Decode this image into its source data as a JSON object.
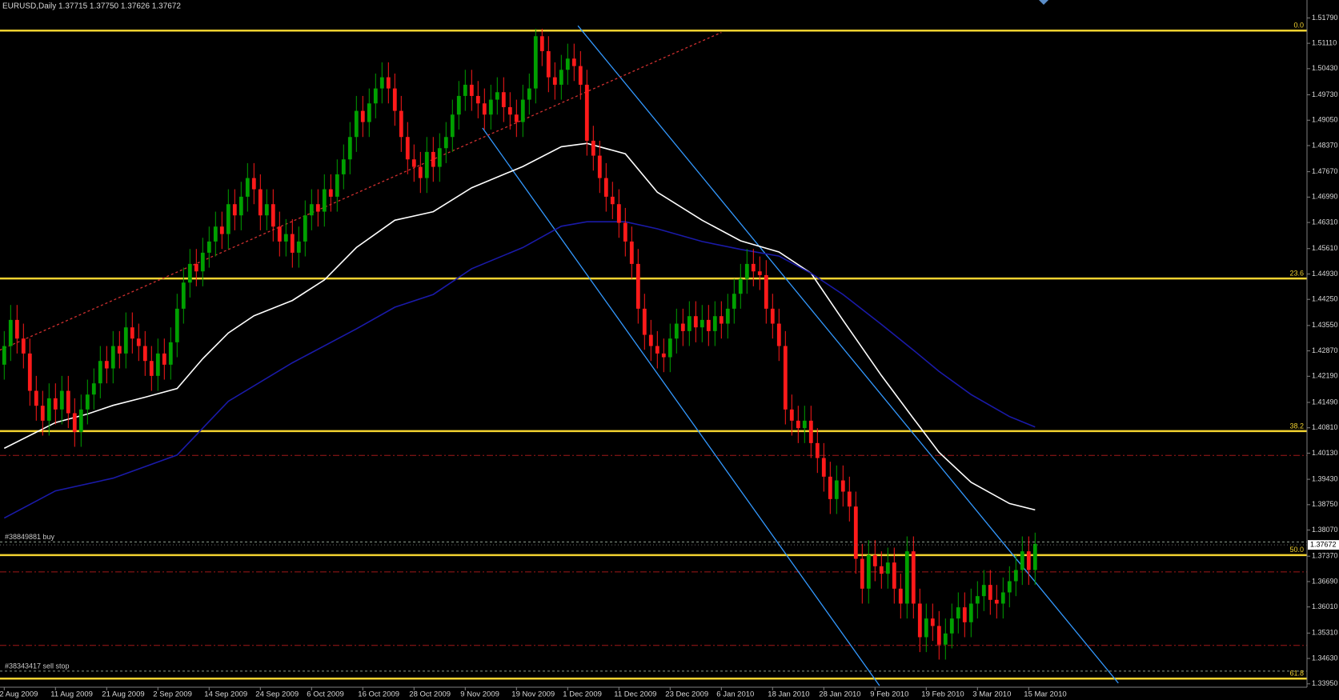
{
  "chart_data": {
    "type": "candlestick",
    "header": "EURUSD,Daily  1.37715 1.37750 1.37626 1.37672",
    "categories": [
      "2 Aug 2009",
      null,
      null,
      null,
      null,
      null,
      null,
      null,
      "11 Aug 2009",
      null,
      null,
      null,
      null,
      null,
      null,
      null,
      "21 Aug 2009",
      null,
      null,
      null,
      null,
      null,
      null,
      null,
      "2 Sep 2009",
      null,
      null,
      null,
      null,
      null,
      null,
      null,
      "14 Sep 2009",
      null,
      null,
      null,
      null,
      null,
      null,
      null,
      "24 Sep 2009",
      null,
      null,
      null,
      null,
      null,
      null,
      null,
      "6 Oct 2009",
      null,
      null,
      null,
      null,
      null,
      null,
      null,
      "16 Oct 2009",
      null,
      null,
      null,
      null,
      null,
      null,
      null,
      "28 Oct 2009",
      null,
      null,
      null,
      null,
      null,
      null,
      null,
      "9 Nov 2009",
      null,
      null,
      null,
      null,
      null,
      null,
      null,
      "19 Nov 2009",
      null,
      null,
      null,
      null,
      null,
      null,
      null,
      "1 Dec 2009",
      null,
      null,
      null,
      null,
      null,
      null,
      null,
      "11 Dec 2009",
      null,
      null,
      null,
      null,
      null,
      null,
      null,
      "23 Dec 2009",
      null,
      null,
      null,
      null,
      null,
      null,
      null,
      "6 Jan 2010",
      null,
      null,
      null,
      null,
      null,
      null,
      null,
      "18 Jan 2010",
      null,
      null,
      null,
      null,
      null,
      null,
      null,
      "28 Jan 2010",
      null,
      null,
      null,
      null,
      null,
      null,
      null,
      "9 Feb 2010",
      null,
      null,
      null,
      null,
      null,
      null,
      null,
      "19 Feb 2010",
      null,
      null,
      null,
      null,
      null,
      null,
      null,
      "3 Mar 2010",
      null,
      null,
      null,
      null,
      null,
      null,
      null,
      "15 Mar 2010",
      null
    ],
    "open": [
      1.425,
      1.43,
      1.437,
      1.432,
      1.428,
      1.418,
      1.414,
      1.41,
      1.416,
      1.413,
      1.418,
      1.412,
      1.407,
      1.413,
      1.417,
      1.42,
      1.426,
      1.424,
      1.43,
      1.428,
      1.435,
      1.432,
      1.43,
      1.426,
      1.422,
      1.428,
      1.425,
      1.431,
      1.44,
      1.447,
      1.452,
      1.45,
      1.455,
      1.458,
      1.462,
      1.46,
      1.468,
      1.465,
      1.47,
      1.475,
      1.472,
      1.465,
      1.468,
      1.462,
      1.458,
      1.46,
      1.455,
      1.458,
      1.465,
      1.468,
      1.466,
      1.472,
      1.47,
      1.476,
      1.48,
      1.486,
      1.493,
      1.49,
      1.495,
      1.499,
      1.502,
      1.499,
      1.493,
      1.486,
      1.48,
      1.478,
      1.475,
      1.482,
      1.478,
      1.483,
      1.486,
      1.492,
      1.497,
      1.5,
      1.497,
      1.495,
      1.492,
      1.496,
      1.498,
      1.494,
      1.492,
      1.49,
      1.496,
      1.499,
      1.513,
      1.509,
      1.502,
      1.5,
      1.504,
      1.507,
      1.505,
      1.5,
      1.485,
      1.481,
      1.475,
      1.47,
      1.468,
      1.463,
      1.458,
      1.452,
      1.44,
      1.433,
      1.43,
      1.428,
      1.427,
      1.432,
      1.436,
      1.434,
      1.438,
      1.435,
      1.437,
      1.434,
      1.438,
      1.436,
      1.44,
      1.444,
      1.448,
      1.452,
      1.45,
      1.449,
      1.44,
      1.436,
      1.43,
      1.413,
      1.41,
      1.408,
      1.41,
      1.404,
      1.4,
      1.395,
      1.389,
      1.394,
      1.391,
      1.387,
      1.373,
      1.365,
      1.374,
      1.371,
      1.369,
      1.372,
      1.365,
      1.361,
      1.375,
      1.361,
      1.352,
      1.357,
      1.355,
      1.35,
      1.353,
      1.357,
      1.36,
      1.356,
      1.361,
      1.363,
      1.366,
      1.362,
      1.361,
      1.364,
      1.367,
      1.37,
      1.375,
      1.37
    ],
    "high": [
      1.434,
      1.441,
      1.441,
      1.436,
      1.432,
      1.422,
      1.418,
      1.42,
      1.42,
      1.422,
      1.422,
      1.416,
      1.417,
      1.421,
      1.424,
      1.43,
      1.43,
      1.434,
      1.434,
      1.439,
      1.439,
      1.436,
      1.434,
      1.43,
      1.432,
      1.432,
      1.435,
      1.444,
      1.451,
      1.456,
      1.456,
      1.459,
      1.462,
      1.466,
      1.466,
      1.472,
      1.472,
      1.474,
      1.479,
      1.479,
      1.476,
      1.472,
      1.472,
      1.466,
      1.464,
      1.464,
      1.462,
      1.469,
      1.472,
      1.472,
      1.476,
      1.476,
      1.48,
      1.484,
      1.49,
      1.497,
      1.497,
      1.499,
      1.503,
      1.506,
      1.506,
      1.503,
      1.497,
      1.49,
      1.484,
      1.482,
      1.486,
      1.486,
      1.487,
      1.49,
      1.496,
      1.501,
      1.504,
      1.504,
      1.501,
      1.499,
      1.5,
      1.502,
      1.502,
      1.498,
      1.496,
      1.5,
      1.503,
      1.515,
      1.515,
      1.513,
      1.506,
      1.508,
      1.511,
      1.511,
      1.509,
      1.504,
      1.489,
      1.485,
      1.479,
      1.474,
      1.472,
      1.467,
      1.462,
      1.456,
      1.444,
      1.437,
      1.434,
      1.432,
      1.436,
      1.44,
      1.44,
      1.442,
      1.442,
      1.441,
      1.441,
      1.442,
      1.442,
      1.444,
      1.448,
      1.452,
      1.456,
      1.456,
      1.454,
      1.453,
      1.444,
      1.44,
      1.434,
      1.417,
      1.414,
      1.414,
      1.414,
      1.408,
      1.404,
      1.399,
      1.398,
      1.398,
      1.395,
      1.391,
      1.377,
      1.378,
      1.378,
      1.375,
      1.376,
      1.376,
      1.369,
      1.379,
      1.379,
      1.365,
      1.361,
      1.361,
      1.359,
      1.357,
      1.361,
      1.364,
      1.364,
      1.365,
      1.367,
      1.37,
      1.37,
      1.366,
      1.368,
      1.371,
      1.374,
      1.379,
      1.379,
      1.38
    ],
    "low": [
      1.421,
      1.426,
      1.428,
      1.424,
      1.414,
      1.41,
      1.406,
      1.406,
      1.409,
      1.409,
      1.408,
      1.403,
      1.403,
      1.409,
      1.413,
      1.416,
      1.42,
      1.42,
      1.424,
      1.424,
      1.428,
      1.426,
      1.422,
      1.418,
      1.418,
      1.421,
      1.421,
      1.427,
      1.436,
      1.443,
      1.446,
      1.446,
      1.451,
      1.454,
      1.456,
      1.456,
      1.461,
      1.461,
      1.466,
      1.468,
      1.461,
      1.461,
      1.458,
      1.454,
      1.454,
      1.451,
      1.451,
      1.454,
      1.461,
      1.462,
      1.462,
      1.466,
      1.466,
      1.472,
      1.476,
      1.482,
      1.486,
      1.486,
      1.491,
      1.495,
      1.495,
      1.489,
      1.482,
      1.476,
      1.474,
      1.471,
      1.471,
      1.474,
      1.474,
      1.479,
      1.482,
      1.488,
      1.493,
      1.493,
      1.491,
      1.488,
      1.488,
      1.492,
      1.49,
      1.488,
      1.486,
      1.486,
      1.492,
      1.495,
      1.505,
      1.498,
      1.496,
      1.496,
      1.5,
      1.501,
      1.496,
      1.481,
      1.477,
      1.471,
      1.466,
      1.464,
      1.459,
      1.454,
      1.448,
      1.436,
      1.429,
      1.426,
      1.424,
      1.423,
      1.423,
      1.428,
      1.43,
      1.43,
      1.431,
      1.431,
      1.43,
      1.43,
      1.432,
      1.432,
      1.436,
      1.44,
      1.444,
      1.446,
      1.445,
      1.436,
      1.432,
      1.426,
      1.409,
      1.406,
      1.404,
      1.404,
      1.4,
      1.396,
      1.391,
      1.385,
      1.385,
      1.387,
      1.383,
      1.369,
      1.361,
      1.361,
      1.367,
      1.365,
      1.365,
      1.361,
      1.357,
      1.357,
      1.357,
      1.348,
      1.348,
      1.351,
      1.346,
      1.346,
      1.349,
      1.353,
      1.352,
      1.352,
      1.357,
      1.359,
      1.358,
      1.357,
      1.357,
      1.36,
      1.363,
      1.366,
      1.366,
      1.366
    ],
    "close": [
      1.43,
      1.437,
      1.432,
      1.428,
      1.418,
      1.414,
      1.41,
      1.416,
      1.413,
      1.418,
      1.412,
      1.407,
      1.413,
      1.417,
      1.42,
      1.426,
      1.424,
      1.43,
      1.428,
      1.435,
      1.432,
      1.43,
      1.426,
      1.422,
      1.428,
      1.425,
      1.431,
      1.44,
      1.447,
      1.452,
      1.45,
      1.455,
      1.458,
      1.462,
      1.46,
      1.468,
      1.465,
      1.47,
      1.475,
      1.472,
      1.465,
      1.468,
      1.462,
      1.458,
      1.46,
      1.455,
      1.458,
      1.465,
      1.468,
      1.466,
      1.472,
      1.47,
      1.476,
      1.48,
      1.486,
      1.493,
      1.49,
      1.495,
      1.499,
      1.502,
      1.499,
      1.493,
      1.486,
      1.48,
      1.478,
      1.475,
      1.482,
      1.478,
      1.483,
      1.486,
      1.492,
      1.497,
      1.5,
      1.497,
      1.495,
      1.492,
      1.496,
      1.498,
      1.494,
      1.492,
      1.49,
      1.496,
      1.499,
      1.513,
      1.509,
      1.502,
      1.5,
      1.504,
      1.507,
      1.505,
      1.5,
      1.485,
      1.481,
      1.475,
      1.47,
      1.468,
      1.463,
      1.458,
      1.452,
      1.44,
      1.433,
      1.43,
      1.428,
      1.427,
      1.432,
      1.436,
      1.434,
      1.438,
      1.435,
      1.437,
      1.434,
      1.438,
      1.436,
      1.44,
      1.444,
      1.448,
      1.452,
      1.45,
      1.449,
      1.44,
      1.436,
      1.43,
      1.413,
      1.41,
      1.408,
      1.41,
      1.404,
      1.4,
      1.395,
      1.389,
      1.394,
      1.391,
      1.387,
      1.373,
      1.365,
      1.374,
      1.371,
      1.369,
      1.372,
      1.365,
      1.361,
      1.375,
      1.361,
      1.352,
      1.357,
      1.355,
      1.35,
      1.353,
      1.357,
      1.36,
      1.356,
      1.361,
      1.363,
      1.366,
      1.362,
      1.361,
      1.364,
      1.367,
      1.37,
      1.375,
      1.37,
      1.377
    ],
    "bull_color": "#00a000",
    "bear_color": "#ff1a1a",
    "ylim": [
      1.3386,
      1.5227
    ],
    "yticks": [
      {
        "value": 1.5179,
        "label": "1.51790"
      },
      {
        "value": 1.5111,
        "label": "1.51110"
      },
      {
        "value": 1.5043,
        "label": "1.50430"
      },
      {
        "value": 1.4973,
        "label": "1.49730"
      },
      {
        "value": 1.4905,
        "label": "1.49050"
      },
      {
        "value": 1.4837,
        "label": "1.48370"
      },
      {
        "value": 1.4767,
        "label": "1.47670"
      },
      {
        "value": 1.4699,
        "label": "1.46990"
      },
      {
        "value": 1.4631,
        "label": "1.46310"
      },
      {
        "value": 1.4561,
        "label": "1.45610"
      },
      {
        "value": 1.4493,
        "label": "1.44930"
      },
      {
        "value": 1.4425,
        "label": "1.44250"
      },
      {
        "value": 1.4355,
        "label": "1.43550"
      },
      {
        "value": 1.4287,
        "label": "1.42870"
      },
      {
        "value": 1.4219,
        "label": "1.42190"
      },
      {
        "value": 1.4149,
        "label": "1.41490"
      },
      {
        "value": 1.4081,
        "label": "1.40810"
      },
      {
        "value": 1.4013,
        "label": "1.40130"
      },
      {
        "value": 1.3943,
        "label": "1.39430"
      },
      {
        "value": 1.3875,
        "label": "1.38750"
      },
      {
        "value": 1.3807,
        "label": "1.38070"
      },
      {
        "value": 1.3737,
        "label": "1.37370"
      },
      {
        "value": 1.3669,
        "label": "1.36690"
      },
      {
        "value": 1.3601,
        "label": "1.36010"
      },
      {
        "value": 1.3531,
        "label": "1.35310"
      },
      {
        "value": 1.3463,
        "label": "1.34630"
      },
      {
        "value": 1.3395,
        "label": "1.33950"
      }
    ],
    "current_price": {
      "value": 1.37672,
      "label": "1.37672"
    },
    "moving_averages": [
      {
        "color": "#ffffff",
        "x": [
          0,
          8,
          13,
          17,
          22,
          27,
          31,
          35,
          39,
          45,
          50,
          55,
          61,
          67,
          73,
          81,
          87,
          91,
          97,
          102,
          109,
          115,
          121,
          126,
          131,
          137,
          142,
          146,
          151,
          157,
          161
        ],
        "values": [
          1.4026,
          1.4095,
          1.4118,
          1.4141,
          1.4163,
          1.4186,
          1.4266,
          1.4335,
          1.4381,
          1.4422,
          1.4477,
          1.4564,
          1.4637,
          1.466,
          1.4724,
          1.4781,
          1.4834,
          1.4843,
          1.4815,
          1.4712,
          1.4637,
          1.4582,
          1.4552,
          1.4495,
          1.4369,
          1.4221,
          1.4106,
          1.4015,
          1.3935,
          1.3878,
          1.3861
        ]
      },
      {
        "color": "#1a1aa8",
        "x": [
          0,
          8,
          17,
          27,
          35,
          45,
          55,
          61,
          67,
          73,
          81,
          87,
          91,
          97,
          102,
          109,
          115,
          121,
          126,
          131,
          137,
          142,
          146,
          151,
          157,
          161
        ],
        "values": [
          1.3839,
          1.3912,
          1.3946,
          1.4008,
          1.4152,
          1.4255,
          1.4346,
          1.4404,
          1.4438,
          1.4507,
          1.4564,
          1.4621,
          1.4633,
          1.4633,
          1.4614,
          1.458,
          1.4559,
          1.4541,
          1.4495,
          1.4438,
          1.4358,
          1.4289,
          1.4232,
          1.417,
          1.4111,
          1.4083
        ]
      }
    ],
    "trendlines": [
      {
        "color": "#3399ff",
        "style": "solid",
        "x": [
          89.6,
          174
        ],
        "prices": [
          1.5158,
          1.3397
        ]
      },
      {
        "color": "#3399ff",
        "style": "solid",
        "x": [
          74.7,
          136.7
        ],
        "prices": [
          1.4884,
          1.339
        ]
      },
      {
        "color": "#d03030",
        "style": "dotted",
        "x": [
          -0.7,
          112
        ],
        "prices": [
          1.4289,
          1.514
        ]
      }
    ],
    "fib_color": "#f2d230",
    "fib_levels": [
      {
        "label": "0.0",
        "value": 1.5145
      },
      {
        "label": "23.6",
        "value": 1.4481
      },
      {
        "label": "38.2",
        "value": 1.4072
      },
      {
        "label": "50.0",
        "value": 1.374
      },
      {
        "label": "61.8",
        "value": 1.3409
      }
    ],
    "level_color": "#a01818",
    "levels": [
      1.4007,
      1.3695,
      1.3498
    ],
    "order_color": "#8a9a8a",
    "orders": [
      {
        "label": "#38849881 buy",
        "value": 1.3775
      },
      {
        "label": "#38343417 sell stop",
        "value": 1.3429
      }
    ]
  }
}
